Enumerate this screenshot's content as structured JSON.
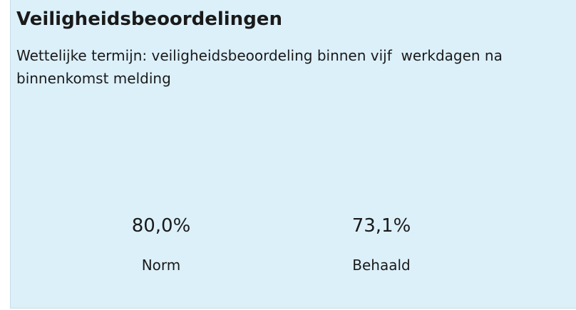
{
  "header": {
    "title": "Veiligheidsbeoordelingen",
    "subtitle": "Wettelijke termijn: veiligheidsbeoordeling binnen vijf  werkdagen na binnenkomst melding"
  },
  "kpis": [
    {
      "value": "80,0%",
      "label": "Norm"
    },
    {
      "value": "73,1%",
      "label": "Behaald"
    }
  ]
}
